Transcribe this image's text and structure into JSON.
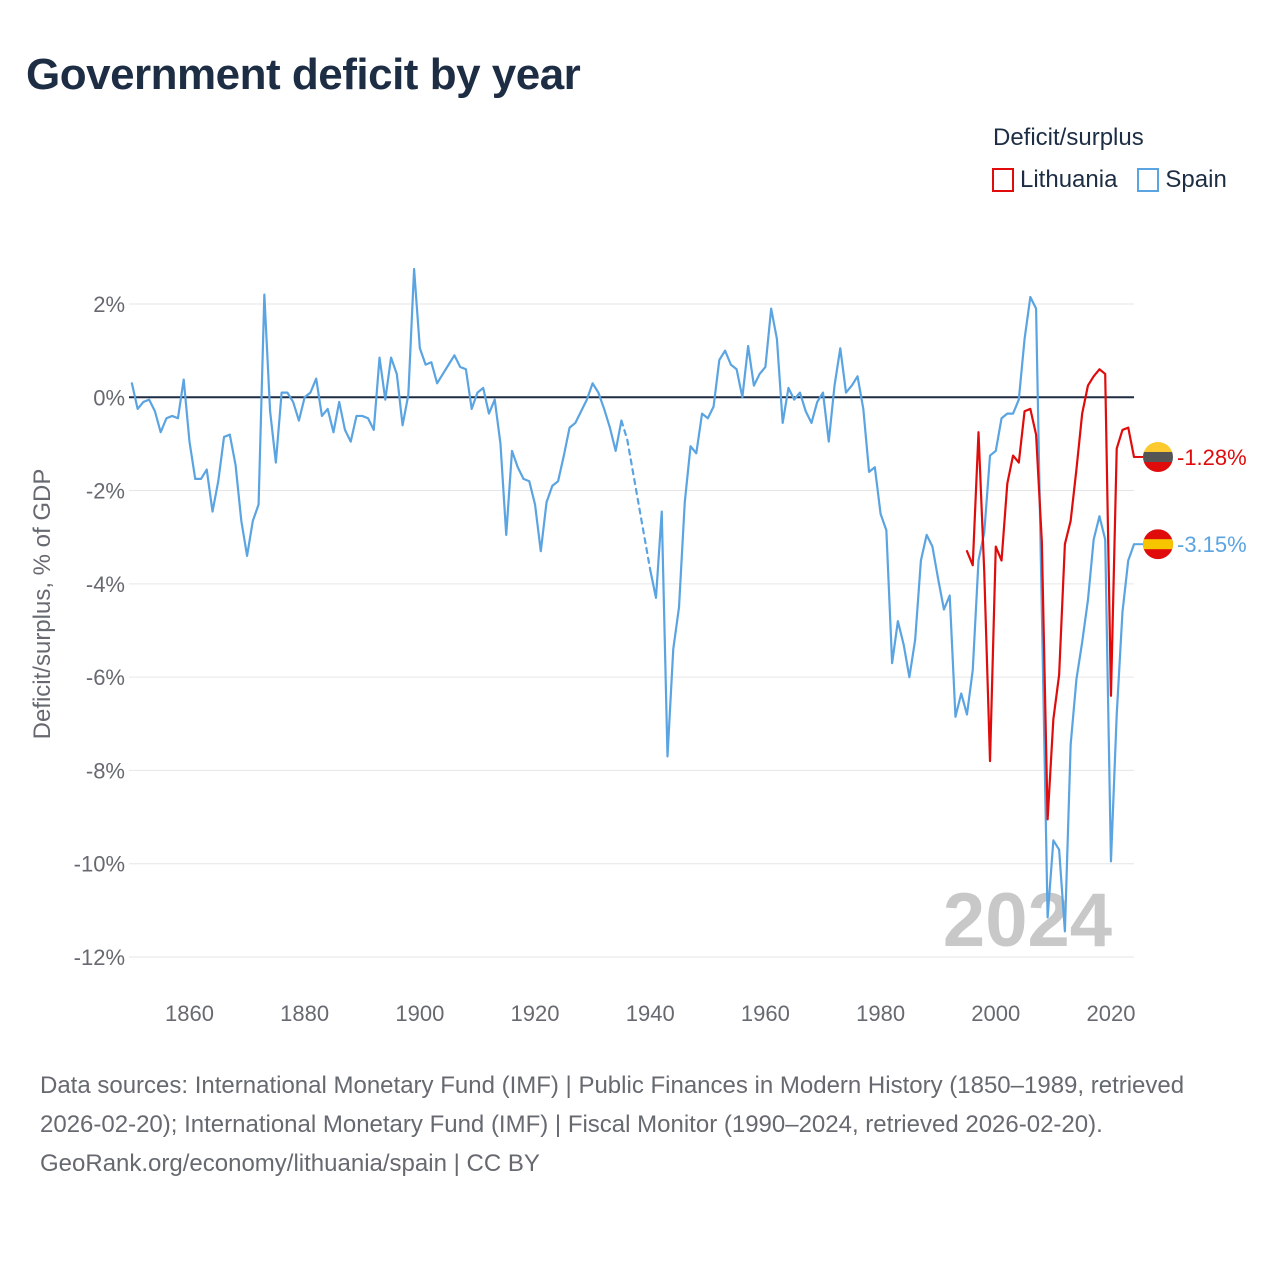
{
  "title": "Government deficit by year",
  "legend": {
    "title": "Deficit/surplus",
    "items": [
      {
        "label": "Lithuania",
        "color": "#e00c0c"
      },
      {
        "label": "Spain",
        "color": "#5ba4e2"
      }
    ]
  },
  "footer": {
    "sources": "Data sources: International Monetary Fund (IMF) | Public Finances in Modern History (1850–1989, retrieved 2026-02-20); International Monetary Fund (IMF) | Fiscal Monitor (1990–2024, retrieved 2026-02-20).",
    "credit": "GeoRank.org/economy/lithuania/spain | CC BY"
  },
  "chart_data": {
    "type": "line",
    "title": "Government deficit by year",
    "ylabel": "Deficit/surplus, % of GDP",
    "xlabel": "",
    "xlim": [
      1849.5,
      2024
    ],
    "ylim": [
      -12.6,
      2.9
    ],
    "x_ticks": [
      1860,
      1880,
      1900,
      1920,
      1940,
      1960,
      1980,
      2000,
      2020
    ],
    "x_tick_labels": [
      "1860",
      "1880",
      "1900",
      "1920",
      "1940",
      "1960",
      "1980",
      "2000",
      "2020"
    ],
    "y_ticks": [
      2,
      0,
      -2,
      -4,
      -6,
      -8,
      -10,
      -12
    ],
    "y_tick_labels": [
      "2%",
      "0%",
      "-2%",
      "-4%",
      "-6%",
      "-8%",
      "-10%",
      "-12%"
    ],
    "year_watermark": "2024",
    "series": [
      {
        "name": "Spain",
        "color": "#5ba4e2",
        "end_label": "-3.15%",
        "segments": [
          {
            "style": "solid",
            "points": [
              [
                1850,
                0.3
              ],
              [
                1851,
                -0.25
              ],
              [
                1852,
                -0.1
              ],
              [
                1853,
                -0.05
              ],
              [
                1854,
                -0.3
              ],
              [
                1855,
                -0.75
              ],
              [
                1856,
                -0.45
              ],
              [
                1857,
                -0.4
              ],
              [
                1858,
                -0.45
              ],
              [
                1859,
                0.38
              ],
              [
                1860,
                -0.95
              ],
              [
                1861,
                -1.75
              ],
              [
                1862,
                -1.75
              ],
              [
                1863,
                -1.55
              ],
              [
                1864,
                -2.45
              ],
              [
                1865,
                -1.8
              ],
              [
                1866,
                -0.85
              ],
              [
                1867,
                -0.8
              ],
              [
                1868,
                -1.45
              ],
              [
                1869,
                -2.65
              ],
              [
                1870,
                -3.4
              ],
              [
                1871,
                -2.65
              ],
              [
                1872,
                -2.3
              ],
              [
                1873,
                2.2
              ],
              [
                1874,
                -0.3
              ],
              [
                1875,
                -1.4
              ],
              [
                1876,
                0.1
              ],
              [
                1877,
                0.1
              ],
              [
                1878,
                -0.1
              ],
              [
                1879,
                -0.5
              ],
              [
                1880,
                0
              ],
              [
                1881,
                0.1
              ],
              [
                1882,
                0.4
              ],
              [
                1883,
                -0.4
              ],
              [
                1884,
                -0.25
              ],
              [
                1885,
                -0.75
              ],
              [
                1886,
                -0.1
              ],
              [
                1887,
                -0.7
              ],
              [
                1888,
                -0.95
              ],
              [
                1889,
                -0.4
              ],
              [
                1890,
                -0.4
              ],
              [
                1891,
                -0.45
              ],
              [
                1892,
                -0.7
              ],
              [
                1893,
                0.85
              ],
              [
                1894,
                -0.05
              ],
              [
                1895,
                0.85
              ],
              [
                1896,
                0.5
              ],
              [
                1897,
                -0.6
              ],
              [
                1898,
                0.05
              ],
              [
                1899,
                2.75
              ],
              [
                1900,
                1.05
              ],
              [
                1901,
                0.7
              ],
              [
                1902,
                0.75
              ],
              [
                1903,
                0.3
              ],
              [
                1904,
                0.5
              ],
              [
                1905,
                0.7
              ],
              [
                1906,
                0.9
              ],
              [
                1907,
                0.65
              ],
              [
                1908,
                0.6
              ],
              [
                1909,
                -0.25
              ],
              [
                1910,
                0.1
              ],
              [
                1911,
                0.2
              ],
              [
                1912,
                -0.35
              ],
              [
                1913,
                -0.05
              ],
              [
                1914,
                -1.0
              ],
              [
                1915,
                -2.95
              ],
              [
                1916,
                -1.15
              ],
              [
                1917,
                -1.5
              ],
              [
                1918,
                -1.75
              ],
              [
                1919,
                -1.8
              ],
              [
                1920,
                -2.3
              ],
              [
                1921,
                -3.3
              ],
              [
                1922,
                -2.25
              ],
              [
                1923,
                -1.9
              ],
              [
                1924,
                -1.8
              ],
              [
                1925,
                -1.25
              ],
              [
                1926,
                -0.65
              ],
              [
                1927,
                -0.55
              ],
              [
                1928,
                -0.3
              ],
              [
                1929,
                -0.05
              ],
              [
                1930,
                0.3
              ],
              [
                1931,
                0.1
              ],
              [
                1932,
                -0.25
              ],
              [
                1933,
                -0.65
              ],
              [
                1934,
                -1.15
              ],
              [
                1935,
                -0.5
              ]
            ]
          },
          {
            "style": "dashed",
            "points": [
              [
                1935,
                -0.5
              ],
              [
                1936,
                -0.9
              ],
              [
                1937,
                -1.6
              ],
              [
                1938,
                -2.3
              ],
              [
                1939,
                -3.0
              ],
              [
                1940,
                -3.7
              ]
            ]
          },
          {
            "style": "solid",
            "points": [
              [
                1940,
                -3.7
              ],
              [
                1941,
                -4.3
              ],
              [
                1942,
                -2.45
              ],
              [
                1943,
                -7.7
              ],
              [
                1944,
                -5.4
              ],
              [
                1945,
                -4.5
              ],
              [
                1946,
                -2.25
              ],
              [
                1947,
                -1.05
              ],
              [
                1948,
                -1.2
              ],
              [
                1949,
                -0.35
              ],
              [
                1950,
                -0.45
              ],
              [
                1951,
                -0.2
              ],
              [
                1952,
                0.8
              ],
              [
                1953,
                1.0
              ],
              [
                1954,
                0.7
              ],
              [
                1955,
                0.6
              ],
              [
                1956,
                0
              ],
              [
                1957,
                1.1
              ],
              [
                1958,
                0.25
              ],
              [
                1959,
                0.5
              ],
              [
                1960,
                0.65
              ],
              [
                1961,
                1.9
              ],
              [
                1962,
                1.25
              ],
              [
                1963,
                -0.55
              ],
              [
                1964,
                0.2
              ],
              [
                1965,
                -0.05
              ],
              [
                1966,
                0.1
              ],
              [
                1967,
                -0.3
              ],
              [
                1968,
                -0.55
              ],
              [
                1969,
                -0.1
              ],
              [
                1970,
                0.1
              ],
              [
                1971,
                -0.95
              ],
              [
                1972,
                0.25
              ],
              [
                1973,
                1.05
              ],
              [
                1974,
                0.1
              ],
              [
                1975,
                0.25
              ],
              [
                1976,
                0.45
              ],
              [
                1977,
                -0.25
              ],
              [
                1978,
                -1.6
              ],
              [
                1979,
                -1.5
              ],
              [
                1980,
                -2.5
              ],
              [
                1981,
                -2.85
              ],
              [
                1982,
                -5.7
              ],
              [
                1983,
                -4.8
              ],
              [
                1984,
                -5.3
              ],
              [
                1985,
                -6.0
              ],
              [
                1986,
                -5.2
              ],
              [
                1987,
                -3.5
              ],
              [
                1988,
                -2.95
              ],
              [
                1989,
                -3.2
              ],
              [
                1990,
                -3.9
              ],
              [
                1991,
                -4.55
              ],
              [
                1992,
                -4.25
              ],
              [
                1993,
                -6.85
              ],
              [
                1994,
                -6.35
              ],
              [
                1995,
                -6.8
              ],
              [
                1996,
                -5.85
              ],
              [
                1997,
                -3.5
              ],
              [
                1998,
                -2.9
              ],
              [
                1999,
                -1.25
              ],
              [
                2000,
                -1.15
              ],
              [
                2001,
                -0.45
              ],
              [
                2002,
                -0.35
              ],
              [
                2003,
                -0.35
              ],
              [
                2004,
                -0.05
              ],
              [
                2005,
                1.25
              ],
              [
                2006,
                2.15
              ],
              [
                2007,
                1.9
              ],
              [
                2008,
                -4.6
              ],
              [
                2009,
                -11.15
              ],
              [
                2010,
                -9.5
              ],
              [
                2011,
                -9.7
              ],
              [
                2012,
                -11.45
              ],
              [
                2013,
                -7.45
              ],
              [
                2014,
                -6.05
              ],
              [
                2015,
                -5.25
              ],
              [
                2016,
                -4.35
              ],
              [
                2017,
                -3.05
              ],
              [
                2018,
                -2.55
              ],
              [
                2019,
                -3.05
              ],
              [
                2020,
                -9.95
              ],
              [
                2021,
                -6.8
              ],
              [
                2022,
                -4.6
              ],
              [
                2023,
                -3.5
              ],
              [
                2024,
                -3.15
              ]
            ]
          }
        ]
      },
      {
        "name": "Lithuania",
        "color": "#e00c0c",
        "end_label": "-1.28%",
        "segments": [
          {
            "style": "solid",
            "points": [
              [
                1995,
                -3.3
              ],
              [
                1996,
                -3.6
              ],
              [
                1997,
                -0.75
              ],
              [
                1998,
                -3.75
              ],
              [
                1999,
                -7.8
              ],
              [
                2000,
                -3.2
              ],
              [
                2001,
                -3.5
              ],
              [
                2002,
                -1.85
              ],
              [
                2003,
                -1.25
              ],
              [
                2004,
                -1.4
              ],
              [
                2005,
                -0.3
              ],
              [
                2006,
                -0.25
              ],
              [
                2007,
                -0.8
              ],
              [
                2008,
                -3.1
              ],
              [
                2009,
                -9.05
              ],
              [
                2010,
                -6.9
              ],
              [
                2011,
                -5.95
              ],
              [
                2012,
                -3.15
              ],
              [
                2013,
                -2.65
              ],
              [
                2014,
                -1.55
              ],
              [
                2015,
                -0.35
              ],
              [
                2016,
                0.25
              ],
              [
                2017,
                0.45
              ],
              [
                2018,
                0.6
              ],
              [
                2019,
                0.5
              ],
              [
                2020,
                -6.4
              ],
              [
                2021,
                -1.1
              ],
              [
                2022,
                -0.7
              ],
              [
                2023,
                -0.65
              ],
              [
                2024,
                -1.28
              ]
            ]
          }
        ]
      }
    ]
  }
}
